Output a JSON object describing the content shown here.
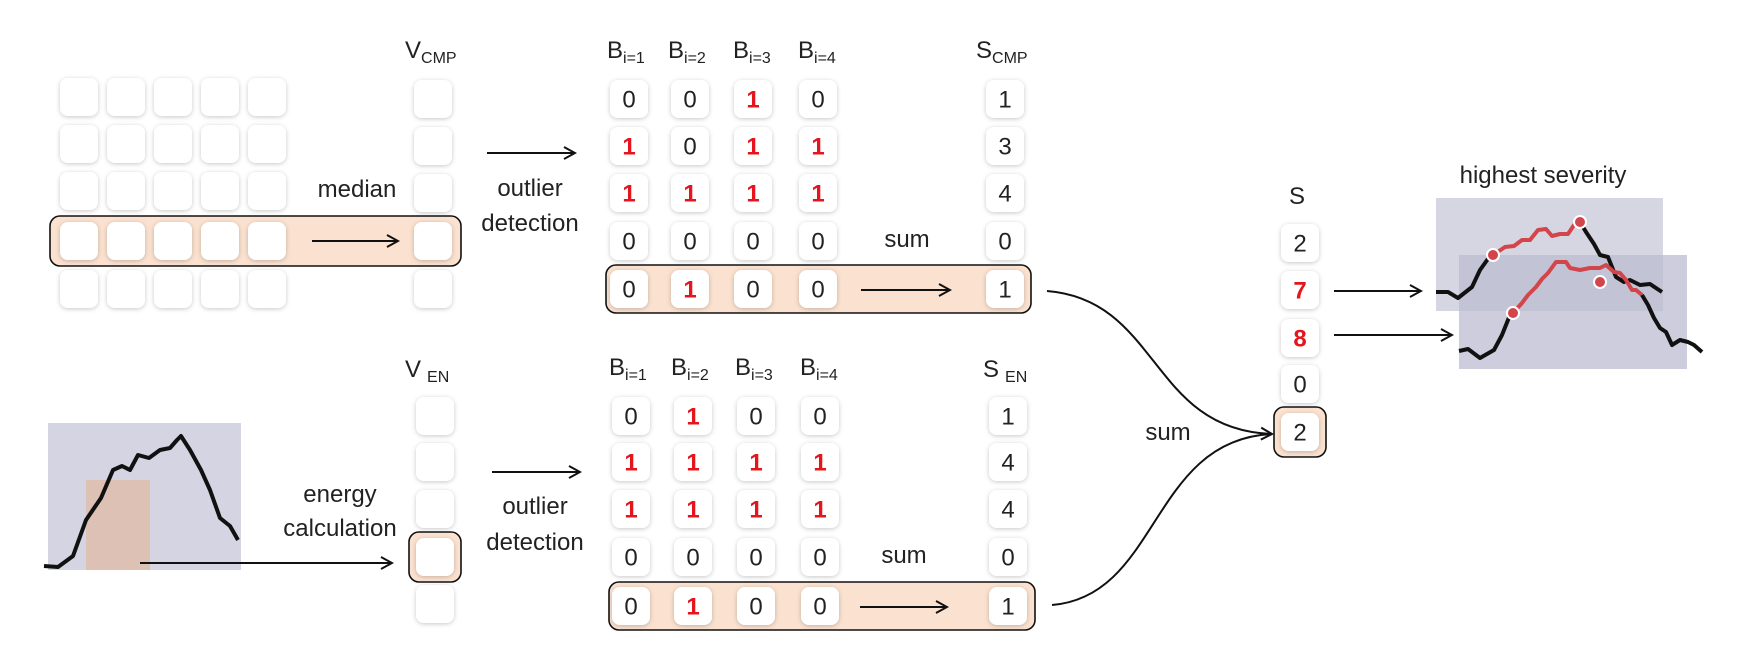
{
  "labels": {
    "median": "median",
    "outlier_detection_top_1": "outlier",
    "outlier_detection_top_2": "detection",
    "outlier_detection_bottom_1": "outlier",
    "outlier_detection_bottom_2": "detection",
    "energy_1": "energy",
    "energy_2": "calculation",
    "sum_top": "sum",
    "sum_bottom": "sum",
    "sum_merge": "sum",
    "highest_severity": "highest severity"
  },
  "headers": {
    "v_cmp": {
      "main": "V",
      "sub": "CMP"
    },
    "v_en": {
      "main": "V",
      "sub": "EN"
    },
    "s_cmp": {
      "main": "S",
      "sub": "CMP"
    },
    "s_en": {
      "main": "S",
      "sub": "EN"
    },
    "s": {
      "main": "S",
      "sub": ""
    },
    "b_top": [
      {
        "main": "B",
        "sub": "i=1"
      },
      {
        "main": "B",
        "sub": "i=2"
      },
      {
        "main": "B",
        "sub": "i=3"
      },
      {
        "main": "B",
        "sub": "i=4"
      }
    ],
    "b_bottom": [
      {
        "main": "B",
        "sub": "i=1"
      },
      {
        "main": "B",
        "sub": "i=2"
      },
      {
        "main": "B",
        "sub": "i=3"
      },
      {
        "main": "B",
        "sub": "i=4"
      }
    ]
  },
  "b_top_values": [
    [
      "0",
      "0",
      "1",
      "0"
    ],
    [
      "1",
      "0",
      "1",
      "1"
    ],
    [
      "1",
      "1",
      "1",
      "1"
    ],
    [
      "0",
      "0",
      "0",
      "0"
    ],
    [
      "0",
      "1",
      "0",
      "0"
    ]
  ],
  "s_cmp_values": [
    "1",
    "3",
    "4",
    "0",
    "1"
  ],
  "b_bottom_values": [
    [
      "0",
      "1",
      "0",
      "0"
    ],
    [
      "1",
      "1",
      "1",
      "1"
    ],
    [
      "1",
      "1",
      "1",
      "1"
    ],
    [
      "0",
      "0",
      "0",
      "0"
    ],
    [
      "0",
      "1",
      "0",
      "0"
    ]
  ],
  "s_en_values": [
    "1",
    "4",
    "4",
    "0",
    "1"
  ],
  "s_values": [
    "2",
    "7",
    "8",
    "0",
    "2"
  ],
  "s_emphasis": [
    false,
    true,
    true,
    false,
    false
  ],
  "colors": {
    "highlight_band": "#fbe1cf",
    "outlier_red": "#e4151c",
    "signal_window": "#d4d4e2",
    "energy_area": "#ddc1b5",
    "severity_segment": "#d2454a"
  }
}
